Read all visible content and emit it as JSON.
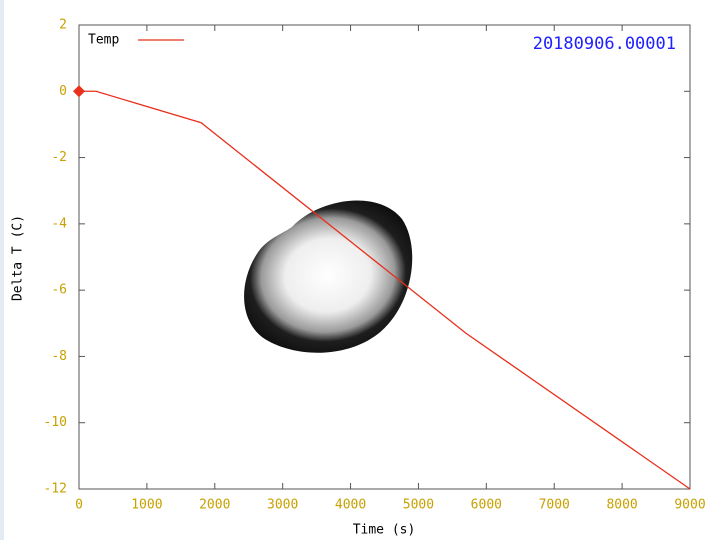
{
  "chart_data": {
    "type": "line",
    "x_label": "Time (s)",
    "y_label": "Delta T (C)",
    "annotation": "20180906.00001",
    "annotation_color": "#2020ff",
    "xlim": [
      0,
      9000
    ],
    "ylim": [
      -12,
      2
    ],
    "xticks": [
      0,
      1000,
      2000,
      3000,
      4000,
      5000,
      6000,
      7000,
      8000,
      9000
    ],
    "yticks": [
      -12,
      -10,
      -8,
      -6,
      -4,
      -2,
      0,
      2
    ],
    "legend": "top-left",
    "series": [
      {
        "name": "Temp",
        "color": "#e8301c",
        "x": [
          0,
          250,
          1800,
          5700,
          9000
        ],
        "y": [
          0,
          0,
          -0.95,
          -7.3,
          -12
        ]
      }
    ]
  }
}
